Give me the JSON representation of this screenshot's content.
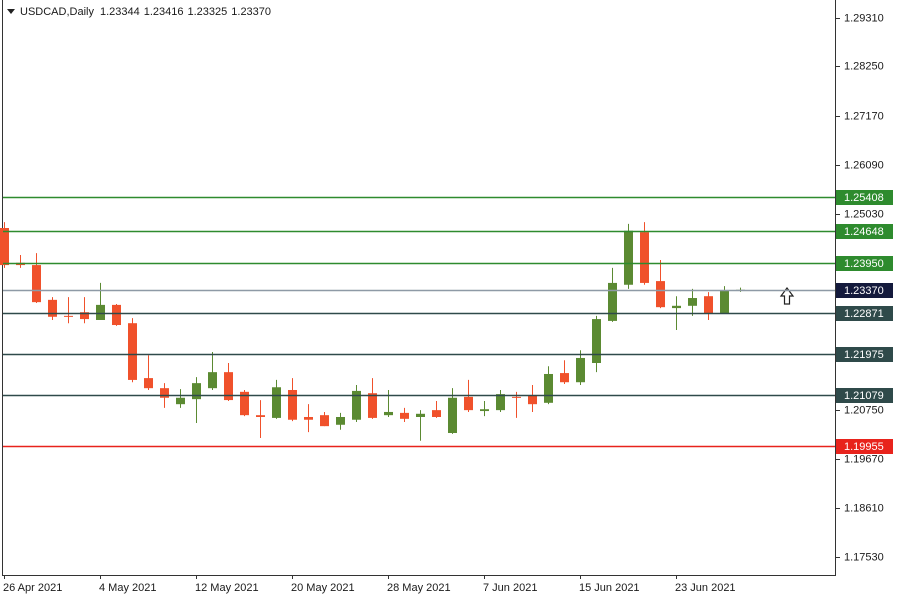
{
  "chart_data": {
    "type": "candlestick",
    "symbol": "USDCAD,Daily",
    "quote": [
      "1.23344",
      "1.23416",
      "1.23325",
      "1.23370"
    ],
    "categories": [
      "26 Apr 2021",
      null,
      null,
      null,
      null,
      null,
      "4 May 2021",
      null,
      null,
      null,
      null,
      null,
      "12 May 2021",
      null,
      null,
      null,
      null,
      null,
      "20 May 2021",
      null,
      null,
      null,
      null,
      null,
      "28 May 2021",
      null,
      null,
      null,
      null,
      null,
      "7 Jun 2021",
      null,
      null,
      null,
      null,
      null,
      "15 Jun 2021",
      null,
      null,
      null,
      null,
      null,
      "23 Jun 2021",
      null,
      null,
      null,
      null
    ],
    "open": [
      1.2472,
      1.2396,
      1.2391,
      1.2315,
      1.228,
      1.2288,
      1.2271,
      1.2304,
      1.2264,
      1.2144,
      1.2122,
      1.2087,
      1.2098,
      1.2122,
      1.2157,
      1.2114,
      1.2063,
      1.2057,
      1.2118,
      1.2059,
      1.2063,
      1.2042,
      1.2053,
      1.2111,
      1.2063,
      1.2068,
      1.2059,
      1.2074,
      1.2024,
      1.2103,
      1.2072,
      1.2074,
      1.2103,
      1.2105,
      1.209,
      1.2155,
      1.2135,
      1.2177,
      1.2269,
      1.2348,
      1.2463,
      1.2356,
      1.2297,
      1.2302,
      1.2323,
      1.2286,
      1.23344
    ],
    "high": [
      1.2485,
      1.2413,
      1.2417,
      1.2321,
      1.2321,
      1.2321,
      1.2352,
      1.2306,
      1.2275,
      1.2194,
      1.2133,
      1.212,
      1.2146,
      1.2201,
      1.2177,
      1.2118,
      1.2096,
      1.214,
      1.2144,
      1.2087,
      1.207,
      1.2068,
      1.2129,
      1.2144,
      1.2118,
      1.2079,
      1.2074,
      1.2094,
      1.2122,
      1.214,
      1.2094,
      1.2118,
      1.2114,
      1.2129,
      1.217,
      1.2183,
      1.2205,
      1.228,
      1.2385,
      1.2481,
      1.2485,
      1.2402,
      1.2323,
      1.2339,
      1.2332,
      1.2345,
      1.23416
    ],
    "low": [
      1.2385,
      1.2385,
      1.2308,
      1.2271,
      1.2264,
      1.2264,
      1.2271,
      1.2258,
      1.2135,
      1.2118,
      1.2079,
      1.2079,
      1.2046,
      1.2118,
      1.2094,
      1.2061,
      1.2013,
      1.2055,
      1.205,
      1.2026,
      1.2039,
      1.2031,
      1.2048,
      1.2055,
      1.2059,
      1.2048,
      1.2007,
      1.2057,
      1.2022,
      1.207,
      1.2061,
      1.207,
      1.2057,
      1.207,
      1.2087,
      1.2131,
      1.2129,
      1.2157,
      1.2267,
      1.2339,
      1.2348,
      1.2297,
      1.2249,
      1.228,
      1.2271,
      1.2284,
      1.23325
    ],
    "close": [
      1.2391,
      1.2391,
      1.231,
      1.2278,
      1.2278,
      1.2273,
      1.2304,
      1.226,
      1.214,
      1.2122,
      1.2101,
      1.2101,
      1.2133,
      1.2157,
      1.2096,
      1.2063,
      1.2059,
      1.2124,
      1.2053,
      1.2053,
      1.2039,
      1.2059,
      1.2116,
      1.2057,
      1.207,
      1.2055,
      1.2066,
      1.2059,
      1.2101,
      1.2074,
      1.2076,
      1.2109,
      1.2101,
      1.2087,
      1.2153,
      1.2135,
      1.2188,
      1.2273,
      1.2352,
      1.2466,
      1.2352,
      1.2299,
      1.2302,
      1.2319,
      1.2286,
      1.2335,
      1.2337
    ],
    "up_color": "#5b8a32",
    "down_color": "#f0512b",
    "ylim": [
      1.17137,
      1.29703
    ],
    "yticks": [
      {
        "value": 1.2931,
        "label": "1.29310"
      },
      {
        "value": 1.2825,
        "label": "1.28250"
      },
      {
        "value": 1.2717,
        "label": "1.27170"
      },
      {
        "value": 1.2609,
        "label": "1.26090"
      },
      {
        "value": 1.2503,
        "label": "1.25030"
      },
      {
        "value": 1.2075,
        "label": "1.20750"
      },
      {
        "value": 1.1967,
        "label": "1.19670"
      },
      {
        "value": 1.1861,
        "label": "1.18610"
      },
      {
        "value": 1.1753,
        "label": "1.17530"
      }
    ],
    "levels": [
      {
        "value": 1.25408,
        "label": "1.25408",
        "color": "#2e8b2e",
        "label_color": "#2e8b2e"
      },
      {
        "value": 1.24648,
        "label": "1.24648",
        "color": "#2e8b2e",
        "label_color": "#2e8b2e"
      },
      {
        "value": 1.2395,
        "label": "1.23950",
        "color": "#2e8b2e",
        "label_color": "#2e8b2e"
      },
      {
        "value": 1.2337,
        "label": "1.23370",
        "color": "#8e9aa6",
        "label_color": "#141a3c"
      },
      {
        "value": 1.22871,
        "label": "1.22871",
        "color": "#2f4a4a",
        "label_color": "#2f4a4a"
      },
      {
        "value": 1.21975,
        "label": "1.21975",
        "color": "#2f4a4a",
        "label_color": "#2f4a4a"
      },
      {
        "value": 1.21079,
        "label": "1.21079",
        "color": "#2f4a4a",
        "label_color": "#2f4a4a"
      },
      {
        "value": 1.19955,
        "label": "1.19955",
        "color": "#e8231c",
        "label_color": "#e8231c"
      }
    ]
  }
}
